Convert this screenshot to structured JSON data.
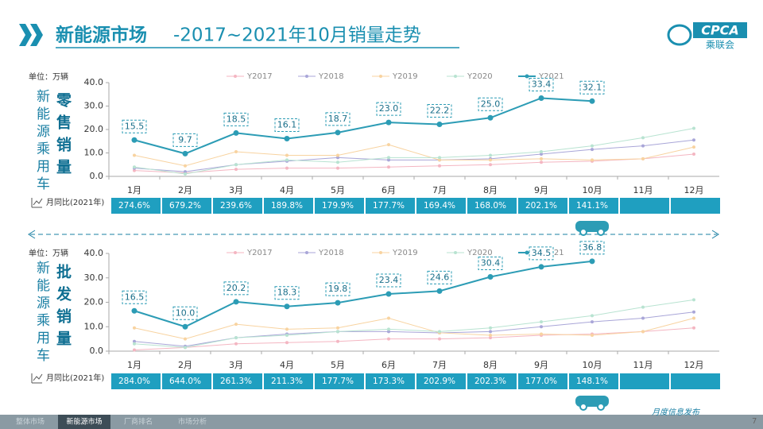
{
  "header": {
    "title_main": "新能源市场",
    "title_rest": "-2017~2021年10月销量走势",
    "logo": "CPCA",
    "logo_cn": "乘联会"
  },
  "chart_data": [
    {
      "type": "line",
      "unit": "单位：万辆",
      "side_label": "新能源乘用车",
      "label": "零售销量",
      "categories": [
        "1月",
        "2月",
        "3月",
        "4月",
        "5月",
        "6月",
        "7月",
        "8月",
        "9月",
        "10月",
        "11月",
        "12月"
      ],
      "ylim": [
        0,
        40
      ],
      "yticks": [
        {
          "value": 0,
          "label": "0.0"
        },
        {
          "value": 10,
          "label": "10.0"
        },
        {
          "value": 20,
          "label": "20.0"
        },
        {
          "value": 30,
          "label": "30.0"
        },
        {
          "value": 40,
          "label": "40.0"
        }
      ],
      "series": [
        {
          "name": "Y2017",
          "color": "#f4b6c2",
          "values": [
            2.5,
            1.5,
            3,
            3.5,
            3.5,
            4,
            4.5,
            5,
            6,
            6.5,
            7.5,
            9.5
          ]
        },
        {
          "name": "Y2018",
          "color": "#a9a6d8",
          "values": [
            3.5,
            2,
            5,
            6.5,
            8,
            7,
            7,
            7.5,
            9.5,
            11.5,
            13,
            15.5
          ]
        },
        {
          "name": "Y2019",
          "color": "#f8d3a0",
          "values": [
            9,
            4.5,
            10.5,
            9,
            9,
            13.5,
            7,
            7,
            7.5,
            7,
            7.5,
            12.5
          ]
        },
        {
          "name": "Y2020",
          "color": "#b8e3d1",
          "values": [
            4,
            1,
            5,
            7,
            6,
            8,
            8,
            9,
            10.5,
            13,
            16.5,
            20.5
          ]
        },
        {
          "name": "Y2021",
          "color": "#2c9cb5",
          "values": [
            15.5,
            9.7,
            18.5,
            16.1,
            18.7,
            23.0,
            22.2,
            25.0,
            33.4,
            32.1,
            null,
            null
          ],
          "value_labels": [
            "15.5",
            "9.7",
            "18.5",
            "16.1",
            "18.7",
            "23.0",
            "22.2",
            "25.0",
            "33.4",
            "32.1",
            null,
            null
          ]
        }
      ],
      "yoy": {
        "label": "月同比(2021年)",
        "values": [
          "274.6%",
          "679.2%",
          "239.6%",
          "189.8%",
          "179.9%",
          "177.7%",
          "169.4%",
          "168.0%",
          "202.1%",
          "141.1%"
        ]
      }
    },
    {
      "type": "line",
      "unit": "单位：万辆",
      "side_label": "新能源乘用车",
      "label": "批发销量",
      "categories": [
        "1月",
        "2月",
        "3月",
        "4月",
        "5月",
        "6月",
        "7月",
        "8月",
        "9月",
        "10月",
        "11月",
        "12月"
      ],
      "ylim": [
        0,
        40
      ],
      "yticks": [
        {
          "value": 0,
          "label": "0.0"
        },
        {
          "value": 10,
          "label": "10.0"
        },
        {
          "value": 20,
          "label": "20.0"
        },
        {
          "value": 30,
          "label": "30.0"
        },
        {
          "value": 40,
          "label": "40.0"
        }
      ],
      "series": [
        {
          "name": "Y2017",
          "color": "#f4b6c2",
          "values": [
            0.5,
            1.5,
            3,
            3.5,
            4,
            5,
            5,
            5.5,
            6.5,
            7,
            8,
            9.5
          ]
        },
        {
          "name": "Y2018",
          "color": "#a9a6d8",
          "values": [
            4,
            2,
            5.5,
            7,
            8,
            8,
            7.5,
            8,
            10,
            12,
            13.5,
            16
          ]
        },
        {
          "name": "Y2019",
          "color": "#f8d3a0",
          "values": [
            9.5,
            5,
            11,
            9,
            9.5,
            13.5,
            7.5,
            6.5,
            7,
            6.5,
            8,
            13.5
          ]
        },
        {
          "name": "Y2020",
          "color": "#b8e3d1",
          "values": [
            3,
            1.5,
            5.5,
            6.5,
            8,
            9,
            8,
            9.5,
            12,
            14.5,
            18,
            21
          ]
        },
        {
          "name": "Y2021",
          "color": "#2c9cb5",
          "values": [
            16.5,
            10.0,
            20.2,
            18.3,
            19.8,
            23.4,
            24.6,
            30.4,
            34.5,
            36.8,
            null,
            null
          ],
          "value_labels": [
            "16.5",
            "10.0",
            "20.2",
            "18.3",
            "19.8",
            "23.4",
            "24.6",
            "30.4",
            "34.5",
            "36.8",
            null,
            null
          ]
        }
      ],
      "yoy": {
        "label": "月同比(2021年)",
        "values": [
          "284.0%",
          "644.0%",
          "261.3%",
          "211.3%",
          "177.7%",
          "173.3%",
          "202.9%",
          "202.3%",
          "177.0%",
          "148.1%"
        ]
      }
    }
  ],
  "footer": {
    "tabs": [
      "整体市场",
      "新能源市场",
      "厂商排名",
      "市场分析"
    ],
    "slogan": "月度信息发布",
    "page": "7"
  }
}
